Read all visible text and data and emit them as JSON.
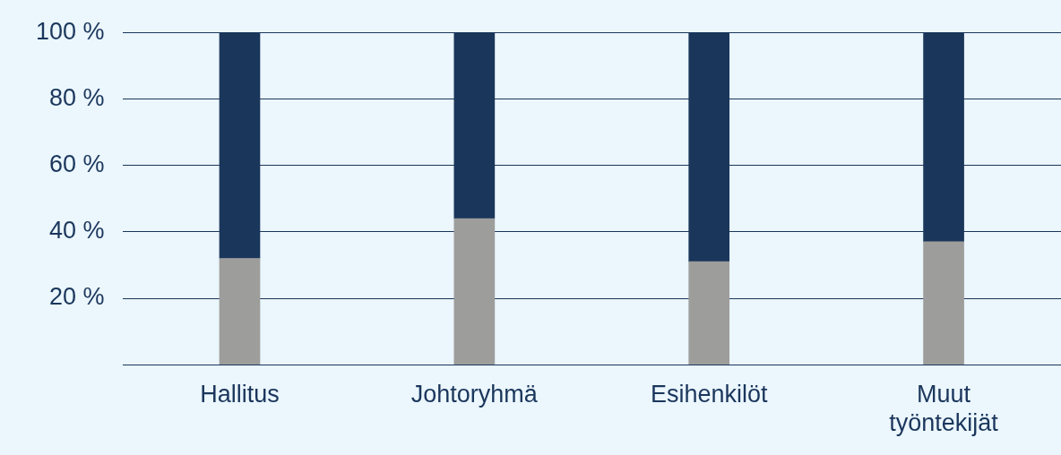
{
  "chart_data": {
    "type": "bar",
    "stacked": true,
    "categories": [
      "Hallitus",
      "Johtoryhmä",
      "Esihenkilöt",
      "Muut työntekijät"
    ],
    "series": [
      {
        "color": "#9d9d9b",
        "values": [
          32,
          44,
          31,
          37
        ]
      },
      {
        "color": "#1a365b",
        "values": [
          68,
          56,
          69,
          63
        ]
      }
    ],
    "ylim": [
      0,
      100
    ],
    "yticks": [
      {
        "value": 0,
        "label": null
      },
      {
        "value": 20,
        "label": "20 %"
      },
      {
        "value": 40,
        "label": "40 %"
      },
      {
        "value": 60,
        "label": "60 %"
      },
      {
        "value": 80,
        "label": "80 %"
      },
      {
        "value": 100,
        "label": "100 %"
      }
    ],
    "grid": "y",
    "legend": false
  }
}
